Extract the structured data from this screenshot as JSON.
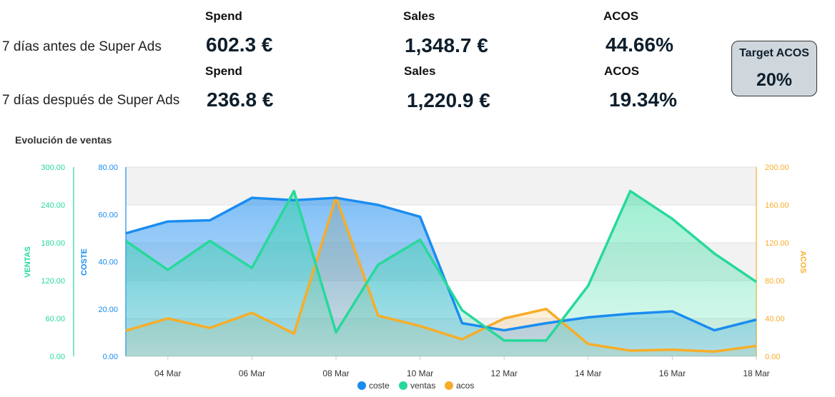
{
  "summary": {
    "rows": [
      {
        "label": "7 días antes de Super Ads",
        "spend_header": "Spend",
        "sales_header": "Sales",
        "acos_header": "ACOS",
        "spend": "602.3 €",
        "sales": "1,348.7 €",
        "acos": "44.66%"
      },
      {
        "label": "7 días después de Super Ads",
        "spend_header": "Spend",
        "sales_header": "Sales",
        "acos_header": "ACOS",
        "spend": "236.8 €",
        "sales": "1,220.9 €",
        "acos": "19.34%"
      }
    ],
    "target": {
      "title": "Target ACOS",
      "value": "20%"
    }
  },
  "chart_data": {
    "type": "area",
    "title": "Evolución de ventas",
    "x": [
      "03 Mar",
      "04 Mar",
      "05 Mar",
      "06 Mar",
      "07 Mar",
      "08 Mar",
      "09 Mar",
      "10 Mar",
      "11 Mar",
      "12 Mar",
      "13 Mar",
      "14 Mar",
      "15 Mar",
      "16 Mar",
      "17 Mar",
      "18 Mar"
    ],
    "x_tick_labels": [
      "04 Mar",
      "06 Mar",
      "08 Mar",
      "10 Mar",
      "12 Mar",
      "14 Mar",
      "16 Mar",
      "18 Mar"
    ],
    "axes": {
      "ventas": {
        "label": "VENTAS",
        "range": [
          0,
          300
        ],
        "ticks": [
          "0.00",
          "60.00",
          "120.00",
          "180.00",
          "240.00",
          "300.00"
        ],
        "color": "#27d99a"
      },
      "coste": {
        "label": "COSTE",
        "range": [
          0,
          80
        ],
        "ticks": [
          "0.00",
          "20.00",
          "40.00",
          "60.00",
          "80.00"
        ],
        "color": "#1a8cf0"
      },
      "acos": {
        "label": "ACOS",
        "range": [
          0,
          200
        ],
        "ticks": [
          "0.00",
          "40.00",
          "80.00",
          "120.00",
          "160.00",
          "200.00"
        ],
        "color": "#f7ad28"
      }
    },
    "series": [
      {
        "name": "coste",
        "axis": "coste",
        "color": "#1a8cf0",
        "values": [
          52,
          57,
          57.5,
          67,
          66,
          67,
          64,
          59,
          14,
          11,
          14,
          16.5,
          18,
          19,
          11,
          15.5
        ]
      },
      {
        "name": "ventas",
        "axis": "ventas",
        "color": "#27d99a",
        "values": [
          183,
          137,
          183,
          140,
          262,
          38,
          145,
          185,
          73,
          25,
          25,
          112,
          262,
          218,
          163,
          118
        ]
      },
      {
        "name": "acos",
        "axis": "acos",
        "color": "#f7ad28",
        "values": [
          27,
          40,
          30,
          46,
          24,
          168,
          43,
          32,
          18,
          40,
          50,
          13,
          6,
          7,
          5,
          11
        ]
      }
    ],
    "legend_position": "bottom-center",
    "grid": true
  }
}
